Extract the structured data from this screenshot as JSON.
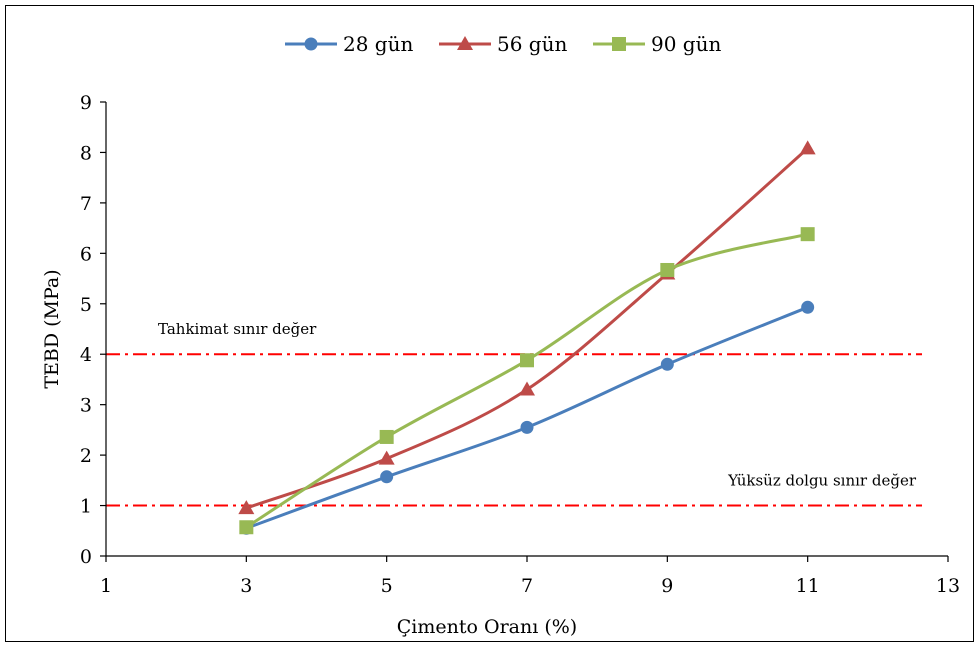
{
  "chart_data": {
    "type": "line",
    "xlabel": "Çimento Oranı (%)",
    "ylabel": "TEBD (MPa)",
    "xlim": [
      1,
      13
    ],
    "ylim": [
      0,
      9
    ],
    "xticks": [
      1,
      3,
      5,
      7,
      9,
      11,
      13
    ],
    "yticks": [
      0,
      1,
      2,
      3,
      4,
      5,
      6,
      7,
      8,
      9
    ],
    "grid": false,
    "legend_position": "top",
    "smooth": true,
    "series": [
      {
        "name": "28 gün",
        "color": "#4a7ebb",
        "marker": "circle",
        "x": [
          3,
          5,
          7,
          9,
          11
        ],
        "y": [
          0.55,
          1.57,
          2.55,
          3.8,
          4.93
        ]
      },
      {
        "name": "56 gün",
        "color": "#be4b48",
        "marker": "triangle",
        "x": [
          3,
          5,
          7,
          9,
          11
        ],
        "y": [
          0.95,
          1.93,
          3.3,
          5.6,
          8.08
        ]
      },
      {
        "name": "90 gün",
        "color": "#98b954",
        "marker": "square",
        "x": [
          3,
          5,
          7,
          9,
          11
        ],
        "y": [
          0.57,
          2.36,
          3.88,
          5.67,
          6.38
        ]
      }
    ],
    "reference_lines": [
      {
        "label": "Tahkimat sınır değer",
        "y": 4,
        "color": "#ff0000",
        "label_position": "above-left"
      },
      {
        "label": "Yüksüz dolgu sınır değer",
        "y": 1,
        "color": "#ff0000",
        "label_position": "above-right"
      }
    ]
  }
}
